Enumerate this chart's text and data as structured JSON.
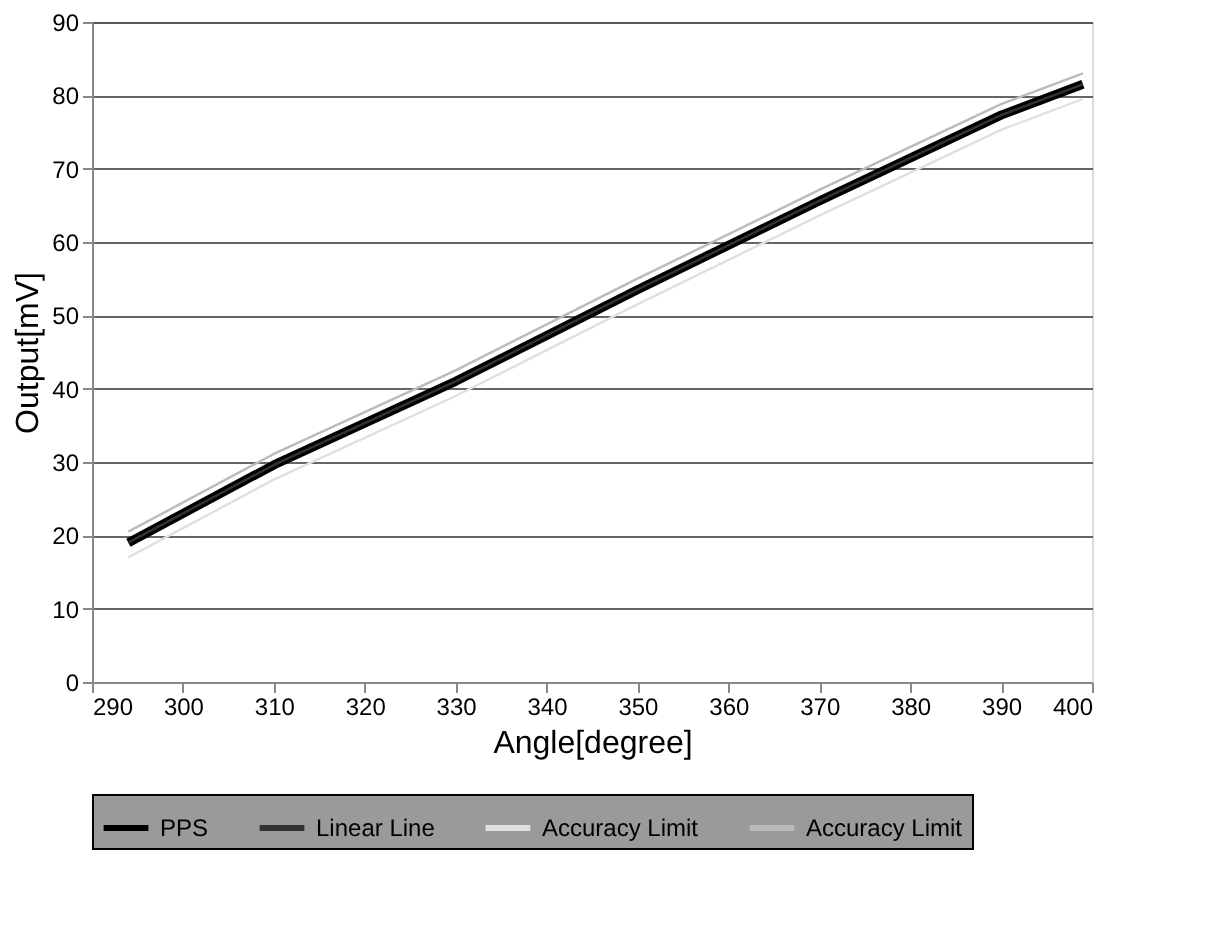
{
  "chart_data": {
    "type": "line",
    "xlabel": "Angle[degree]",
    "ylabel": "Output[mV]",
    "x": [
      294,
      310,
      330,
      350,
      370,
      390,
      399
    ],
    "series": [
      {
        "name": "PPS",
        "color": "#000000",
        "values": [
          19,
          29.6,
          41,
          53.5,
          65.6,
          77.3,
          81.5
        ]
      },
      {
        "name": "Linear Line",
        "color": "#333333",
        "values": [
          19,
          29.6,
          41,
          53.5,
          65.6,
          77.3,
          81.5
        ]
      },
      {
        "name": "Accuracy Limit",
        "color": "#e0e0e0",
        "values": [
          17,
          27.6,
          39,
          51.5,
          63.6,
          75.3,
          79.5
        ]
      },
      {
        "name": "Accuracy Limit",
        "color": "#bbbbbb",
        "values": [
          20.5,
          31.1,
          42.5,
          55,
          67.1,
          78.8,
          83
        ]
      }
    ],
    "xlim": [
      290,
      400
    ],
    "xticks": [
      290,
      300,
      310,
      320,
      330,
      340,
      350,
      360,
      370,
      380,
      390,
      400
    ],
    "ylim": [
      0,
      90
    ],
    "yticks": [
      0,
      10,
      20,
      30,
      40,
      50,
      60,
      70,
      80,
      90
    ],
    "grid": "y",
    "legend": "bottom",
    "marker": "none",
    "line_style": "solid"
  }
}
